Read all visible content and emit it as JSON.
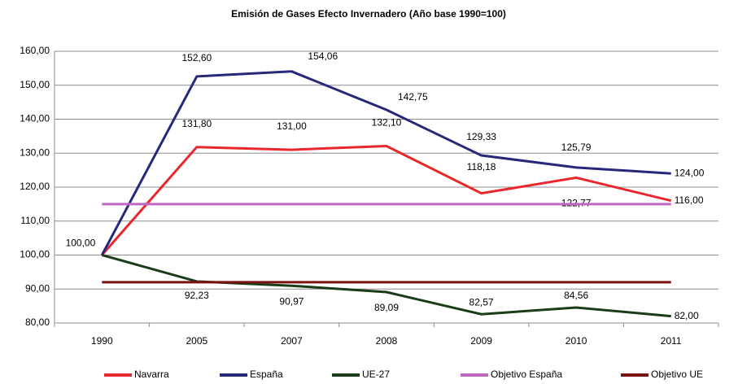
{
  "chart_data": {
    "type": "line",
    "title": "Emisión de Gases Efecto Invernadero (Año base 1990=100)",
    "categories": [
      "1990",
      "2005",
      "2007",
      "2008",
      "2009",
      "2010",
      "2011"
    ],
    "series": [
      {
        "name": "Navarra",
        "color": "#e8282e",
        "values": [
          100,
          131.8,
          131,
          132.1,
          118.18,
          122.77,
          116
        ],
        "value_labels": [
          "100,00",
          "131,80",
          "131,00",
          "132,10",
          "118,18",
          "122,77",
          "116,00"
        ]
      },
      {
        "name": "España",
        "color": "#26287a",
        "values": [
          100,
          152.6,
          154.06,
          142.75,
          129.33,
          125.79,
          124
        ],
        "value_labels": [
          null,
          "152,60",
          "154,06",
          "142,75",
          "129,33",
          "125,79",
          "124,00"
        ]
      },
      {
        "name": "UE-27",
        "color": "#183d17",
        "values": [
          100,
          92.23,
          90.97,
          89.09,
          82.57,
          84.56,
          82
        ],
        "value_labels": [
          null,
          "92,23",
          "90,97",
          "89,09",
          "82,57",
          "84,56",
          "82,00"
        ]
      },
      {
        "name": "Objetivo España",
        "color": "#c066c0",
        "values": [
          115,
          115,
          115,
          115,
          115,
          115,
          115
        ]
      },
      {
        "name": "Objetivo UE",
        "color": "#7a1212",
        "values": [
          92,
          92,
          92,
          92,
          92,
          92,
          92
        ]
      }
    ],
    "ylim": [
      80,
      160
    ],
    "yticks": [
      {
        "value": 80,
        "label": "80,00"
      },
      {
        "value": 90,
        "label": "90,00"
      },
      {
        "value": 100,
        "label": "100,00"
      },
      {
        "value": 110,
        "label": "110,00"
      },
      {
        "value": 120,
        "label": "120,00"
      },
      {
        "value": 130,
        "label": "130,00"
      },
      {
        "value": 140,
        "label": "140,00"
      },
      {
        "value": 150,
        "label": "150,00"
      },
      {
        "value": 160,
        "label": "160,00"
      }
    ],
    "grid": true,
    "legend": "bottom"
  }
}
